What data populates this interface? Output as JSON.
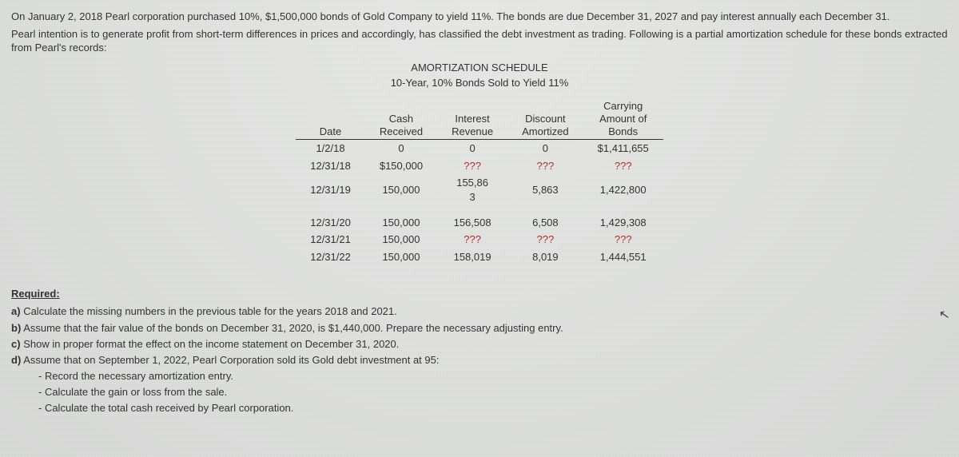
{
  "intro": {
    "line1": "On January 2, 2018 Pearl corporation purchased 10%, $1,500,000 bonds of Gold Company to yield 11%. The bonds are due December 31, 2027 and pay interest annually each December 31.",
    "line2": "Pearl intention is to generate profit from short-term differences in prices and accordingly, has classified the debt investment as trading. Following is a partial amortization schedule for these bonds extracted from Pearl's records:"
  },
  "schedule": {
    "title1": "AMORTIZATION SCHEDULE",
    "title2": "10-Year, 10% Bonds Sold to Yield 11%",
    "headers": {
      "date": "Date",
      "cash1": "Cash",
      "cash2": "Received",
      "int1": "Interest",
      "int2": "Revenue",
      "disc1": "Discount",
      "disc2": "Amortized",
      "carry1": "Carrying",
      "carry2": "Amount of",
      "carry3": "Bonds"
    },
    "rows": {
      "r1": {
        "date": "1/2/18",
        "cash": "0",
        "int": "0",
        "disc": "0",
        "carry": "$1,411,655"
      },
      "r2": {
        "date": "12/31/18",
        "cash": "$150,000",
        "int": "???",
        "disc": "???",
        "carry": "???"
      },
      "r3": {
        "date": "12/31/19",
        "cash": "150,000",
        "int": "155,86",
        "int_sub": "3",
        "disc": "5,863",
        "carry": "1,422,800"
      },
      "r4": {
        "date": "12/31/20",
        "cash": "150,000",
        "int": "156,508",
        "disc": "6,508",
        "carry": "1,429,308"
      },
      "r5": {
        "date": "12/31/21",
        "cash": "150,000",
        "int": "???",
        "disc": "???",
        "carry": "???"
      },
      "r6": {
        "date": "12/31/22",
        "cash": "150,000",
        "int": "158,019",
        "disc": "8,019",
        "carry": "1,444,551"
      }
    }
  },
  "required": {
    "heading": "Required:",
    "a_label": "a)",
    "a": "Calculate the missing numbers in the previous table for the years 2018 and 2021.",
    "b_label": "b)",
    "b": "Assume that the fair value of the bonds on December 31, 2020, is $1,440,000. Prepare the necessary adjusting entry.",
    "c_label": "c)",
    "c": "Show in proper format the effect on the income statement on December 31, 2020.",
    "d_label": "d)",
    "d": "Assume that on September 1, 2022, Pearl Corporation sold its Gold debt investment at 95:",
    "d1": "- Record the necessary amortization entry.",
    "d2": "- Calculate the gain or loss from the sale.",
    "d3": "- Calculate the total cash received by Pearl corporation."
  }
}
